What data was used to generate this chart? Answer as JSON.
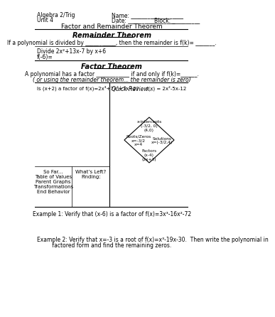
{
  "title_left1": "Algebra 2/Trig",
  "title_left2": "Unit 4",
  "title_center": "Factor and Remainder Theorem",
  "name_label": "Name: ___________________",
  "date_label": "Date: _________________",
  "block_label": "Block: __________",
  "section1_title": "Remainder Theorem",
  "section1_text": "If a polynomial is divided by ___________, then the remainder is f(k)= _______.",
  "divide_text": "Divide 2x²+13x-7 by x+6",
  "fk_text": "f(-6)=",
  "section2_title": "Factor Theorem",
  "factor_text1": "A polynomial has a factor ____________ if and only if f(k)=______.",
  "factor_text2": "( or using the remainder theorem... the remainder is zero)",
  "is_factor_text": "Is (x+2) a factor of f(x)=2x³+7x²+7x+2?",
  "quick_review_label": "Quick Review...",
  "fx_label": "f(x) = 2x²-5x-12",
  "diamond_top": "x-intercepts\n(-3/2, 0)\n(4,0)",
  "diamond_left": "Roots/Zeros\nx=-3/2\nx=4",
  "diamond_right": "Solutions\nx=(-3/2,4)",
  "diamond_bottom": "Factors\n(x-4)\n(2x+3)",
  "so_far_text": "So Far...\nTable of Values\nParent Graphs\nTransformations\nEnd Behavior",
  "whats_left_text": "What’s Left?\nFinding:",
  "example1": "Example 1: Verify that (x-6) is a factor of f(x)=3x³-16x²-72",
  "example2_line1": "Example 2: Verify that x=-3 is a root of f(x)=x³-19x-30.  Then write the polynomial in",
  "example2_line2": "         factored form and find the remaining zeros.",
  "bg_color": "#ffffff",
  "text_color": "#000000",
  "line_color": "#000000"
}
